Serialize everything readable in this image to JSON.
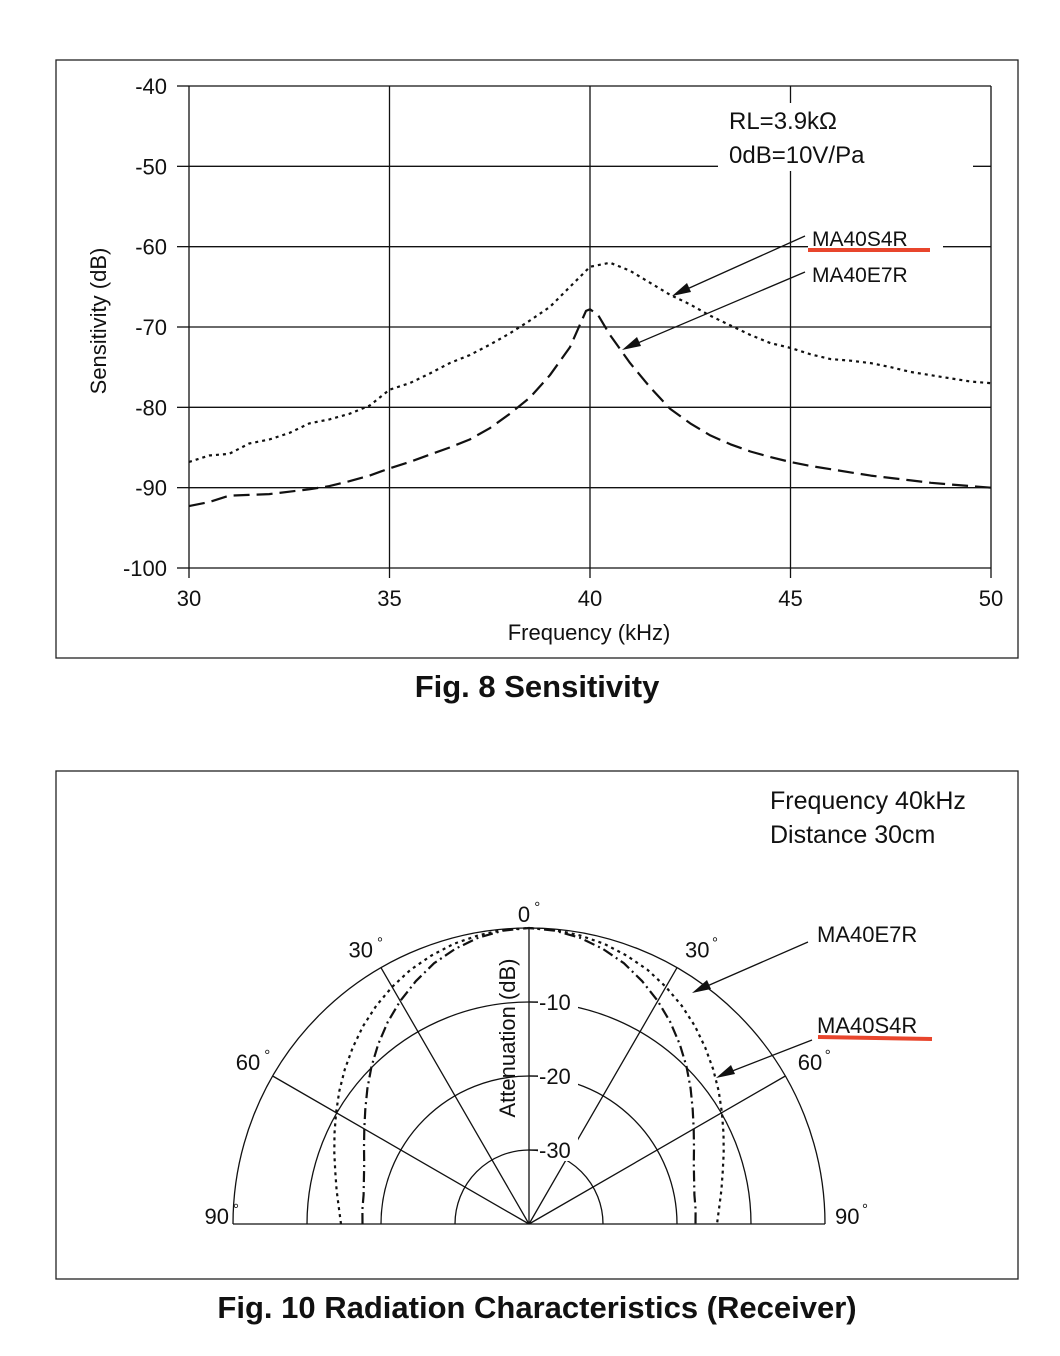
{
  "colors": {
    "line": "#111111",
    "highlight": "#e8452c"
  },
  "chart_data": [
    {
      "type": "line",
      "caption": "Fig. 8  Sensitivity",
      "xlabel": "Frequency (kHz)",
      "ylabel": "Sensitivity (dB)",
      "xlim": [
        30,
        50
      ],
      "ylim": [
        -100,
        -40
      ],
      "xticks": [
        "30",
        "35",
        "40",
        "45",
        "50"
      ],
      "yticks": [
        "-40",
        "-50",
        "-60",
        "-70",
        "-80",
        "-90",
        "-100"
      ],
      "grid": true,
      "annotation_lines": [
        "RL=3.9kΩ",
        "0dB=10V/Pa"
      ],
      "series": [
        {
          "name": "MA40S4R",
          "style": "dotted",
          "highlighted": true,
          "x": [
            30,
            30.5,
            31,
            31.5,
            32,
            32.5,
            33,
            33.5,
            34,
            34.5,
            35,
            35.5,
            36,
            36.5,
            37,
            37.5,
            38,
            38.5,
            39,
            39.5,
            40,
            40.5,
            41,
            41.5,
            42,
            42.5,
            43,
            43.5,
            44,
            44.5,
            45,
            45.5,
            46,
            46.5,
            47,
            47.5,
            48,
            48.5,
            49,
            49.5,
            50
          ],
          "y": [
            -86.8,
            -86.0,
            -85.8,
            -84.5,
            -84.0,
            -83.2,
            -82.0,
            -81.5,
            -80.8,
            -79.8,
            -77.8,
            -77.0,
            -75.8,
            -74.5,
            -73.5,
            -72.2,
            -70.8,
            -69.2,
            -67.5,
            -65.0,
            -62.5,
            -62.0,
            -63.0,
            -64.5,
            -66.0,
            -67.2,
            -68.6,
            -69.8,
            -71.0,
            -72.0,
            -72.6,
            -73.4,
            -74.0,
            -74.2,
            -74.5,
            -75.0,
            -75.6,
            -76.0,
            -76.4,
            -76.8,
            -77.0
          ]
        },
        {
          "name": "MA40E7R",
          "style": "dashed",
          "x": [
            30,
            30.5,
            31,
            31.5,
            32,
            32.5,
            33,
            33.5,
            34,
            34.5,
            35,
            35.5,
            36,
            36.5,
            37,
            37.5,
            38,
            38.5,
            39,
            39.5,
            39.9,
            40.0,
            40.2,
            40.5,
            41,
            41.5,
            42,
            42.5,
            43,
            43.5,
            44,
            44.5,
            45,
            45.5,
            46,
            46.5,
            47,
            47.5,
            48,
            48.5,
            49,
            49.5,
            50
          ],
          "y": [
            -92.3,
            -91.8,
            -91.0,
            -90.9,
            -90.8,
            -90.5,
            -90.2,
            -89.8,
            -89.2,
            -88.5,
            -87.6,
            -86.8,
            -85.9,
            -85.0,
            -84.0,
            -82.6,
            -80.8,
            -78.8,
            -76.0,
            -72.5,
            -68.0,
            -67.8,
            -68.5,
            -71.0,
            -74.5,
            -77.5,
            -80.2,
            -82.0,
            -83.5,
            -84.6,
            -85.5,
            -86.2,
            -86.8,
            -87.3,
            -87.7,
            -88.1,
            -88.5,
            -88.8,
            -89.1,
            -89.4,
            -89.6,
            -89.8,
            -90.0
          ]
        }
      ]
    },
    {
      "type": "polar",
      "caption": "Fig. 10  Radiation Characteristics (Receiver)",
      "annotation_lines": [
        "Frequency  40kHz",
        "Distance  30cm"
      ],
      "radial_label": "Attenuation (dB)",
      "rlim": [
        -40,
        0
      ],
      "rings_db": [
        -10,
        -20,
        -30
      ],
      "ring_labels": [
        "-10",
        "-20",
        "-30"
      ],
      "spokes_deg": [
        -60,
        -30,
        0,
        30,
        60
      ],
      "angle_labels": [
        {
          "deg": -90,
          "text": "90"
        },
        {
          "deg": -60,
          "text": "60"
        },
        {
          "deg": -30,
          "text": "30"
        },
        {
          "deg": 0,
          "text": "0"
        },
        {
          "deg": 30,
          "text": "30"
        },
        {
          "deg": 60,
          "text": "60"
        },
        {
          "deg": 90,
          "text": "90"
        }
      ],
      "series": [
        {
          "name": "MA40E7R",
          "style": "dotted",
          "angles_deg": [
            0,
            5,
            10,
            15,
            20,
            25,
            30,
            35,
            40,
            45,
            50,
            55,
            60,
            65,
            70,
            75,
            80,
            85,
            90
          ],
          "atten_db": [
            0,
            -0.1,
            -0.4,
            -0.8,
            -1.4,
            -2.1,
            -3.0,
            -4.0,
            -5.1,
            -6.3,
            -7.5,
            -8.7,
            -9.9,
            -11.0,
            -12.0,
            -12.9,
            -13.6,
            -14.2,
            -14.6
          ]
        },
        {
          "name": "MA40S4R",
          "style": "dash-dot",
          "highlighted": true,
          "angles_deg": [
            0,
            5,
            10,
            15,
            20,
            25,
            30,
            35,
            40,
            45,
            50,
            55,
            60,
            65,
            70,
            75,
            80,
            85,
            90
          ],
          "atten_db": [
            0,
            -0.2,
            -0.7,
            -1.5,
            -2.5,
            -3.8,
            -5.2,
            -6.7,
            -8.3,
            -9.9,
            -11.5,
            -13.0,
            -14.3,
            -15.4,
            -16.3,
            -16.9,
            -17.3,
            -17.4,
            -17.5
          ]
        }
      ]
    }
  ],
  "symbols": {
    "degree": "°"
  }
}
